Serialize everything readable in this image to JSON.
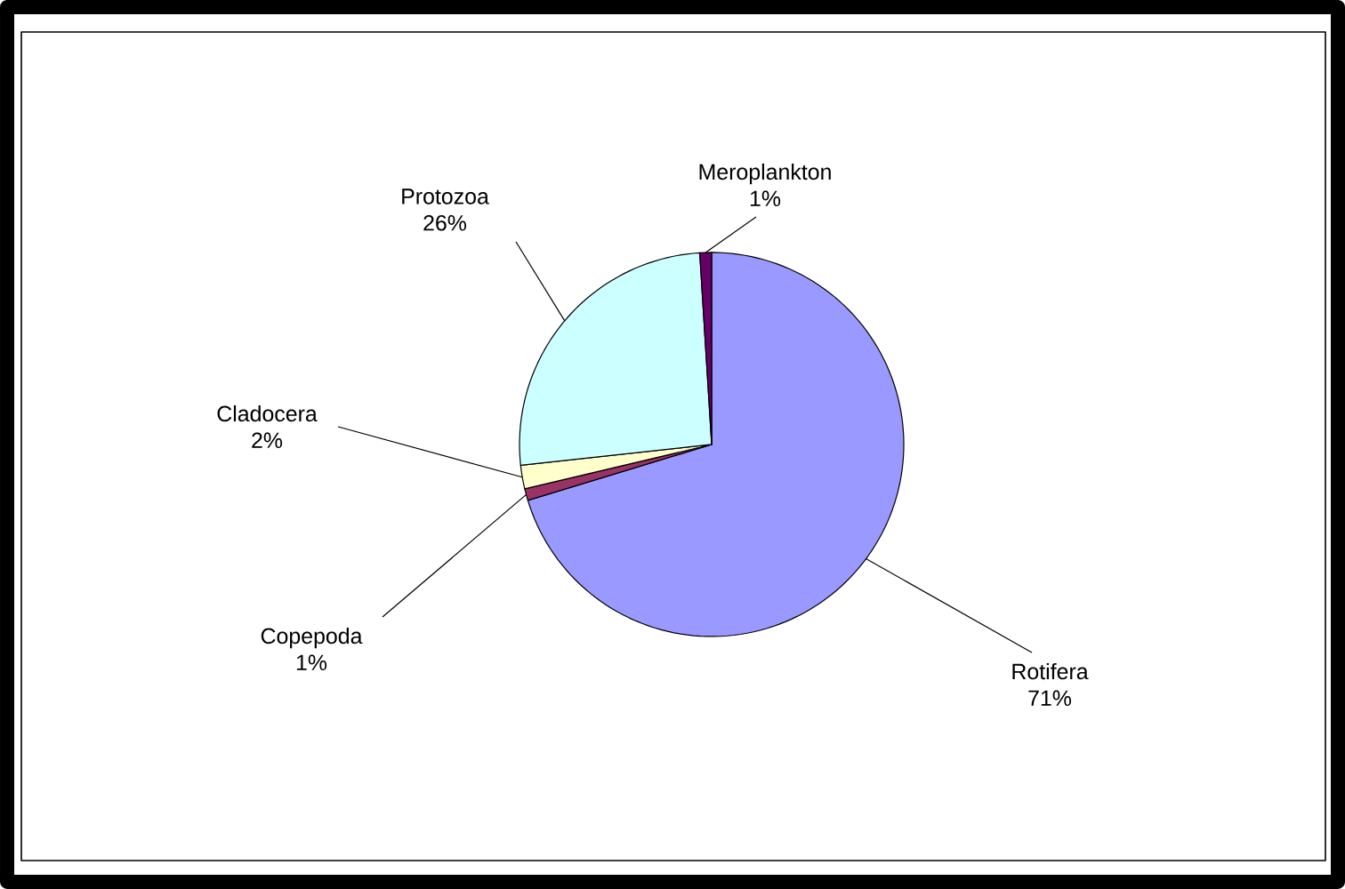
{
  "chart_data": {
    "type": "pie",
    "categories": [
      "Rotifera",
      "Copepoda",
      "Cladocera",
      "Protozoa",
      "Meroplankton"
    ],
    "values": [
      71,
      1,
      2,
      26,
      1
    ],
    "value_labels": [
      "71%",
      "1%",
      "2%",
      "26%",
      "1%"
    ],
    "colors": [
      "#9999ff",
      "#993366",
      "#ffffcc",
      "#ccffff",
      "#660066"
    ]
  }
}
